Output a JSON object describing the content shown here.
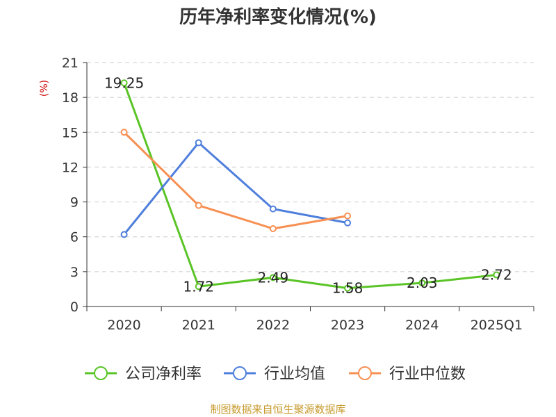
{
  "chart_data": {
    "type": "line",
    "title": "历年净利率变化情况(%)",
    "ylabel": "(%)",
    "xlabel": "",
    "categories": [
      "2020",
      "2021",
      "2022",
      "2023",
      "2024",
      "2025Q1"
    ],
    "ylim": [
      0,
      21
    ],
    "yticks": [
      0,
      3,
      6,
      9,
      12,
      15,
      18,
      21
    ],
    "grid": true,
    "legend_position": "bottom",
    "series": [
      {
        "name": "公司净利率",
        "color": "#5ac426",
        "values": [
          19.25,
          1.72,
          2.49,
          1.58,
          2.03,
          2.72
        ],
        "show_labels": true
      },
      {
        "name": "行业均值",
        "color": "#4f7fdc",
        "values": [
          6.2,
          14.1,
          8.4,
          7.2,
          null,
          null
        ],
        "show_labels": false
      },
      {
        "name": "行业中位数",
        "color": "#f79052",
        "values": [
          15.0,
          8.7,
          6.7,
          7.8,
          null,
          null
        ],
        "show_labels": false
      }
    ]
  },
  "source": "制图数据来自恒生聚源数据库"
}
